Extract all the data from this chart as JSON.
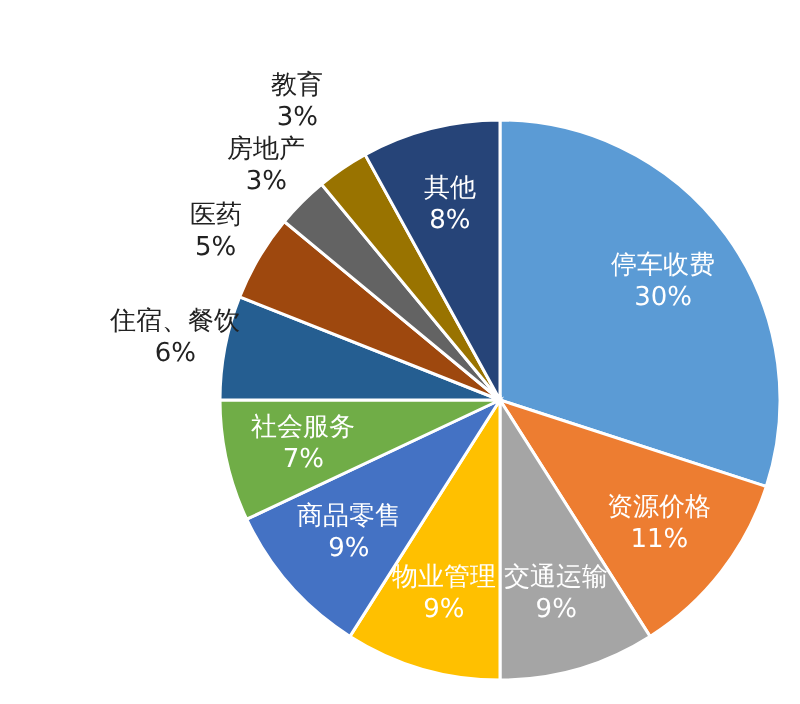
{
  "chart_data": {
    "type": "pie",
    "categories": [
      "停车收费",
      "资源价格",
      "交通运输",
      "物业管理",
      "商品零售",
      "社会服务",
      "住宿、餐饮",
      "医药",
      "房地产",
      "教育",
      "其他"
    ],
    "values": [
      30,
      11,
      9,
      9,
      9,
      7,
      6,
      5,
      3,
      3,
      8
    ],
    "value_labels": [
      "30%",
      "11%",
      "9%",
      "9%",
      "9%",
      "7%",
      "6%",
      "5%",
      "3%",
      "3%",
      "8%"
    ],
    "colors": [
      "#5b9bd5",
      "#ed7d31",
      "#a5a5a5",
      "#ffc000",
      "#4472c4",
      "#70ad47",
      "#255e91",
      "#9e480e",
      "#636363",
      "#997300",
      "#264478"
    ]
  }
}
